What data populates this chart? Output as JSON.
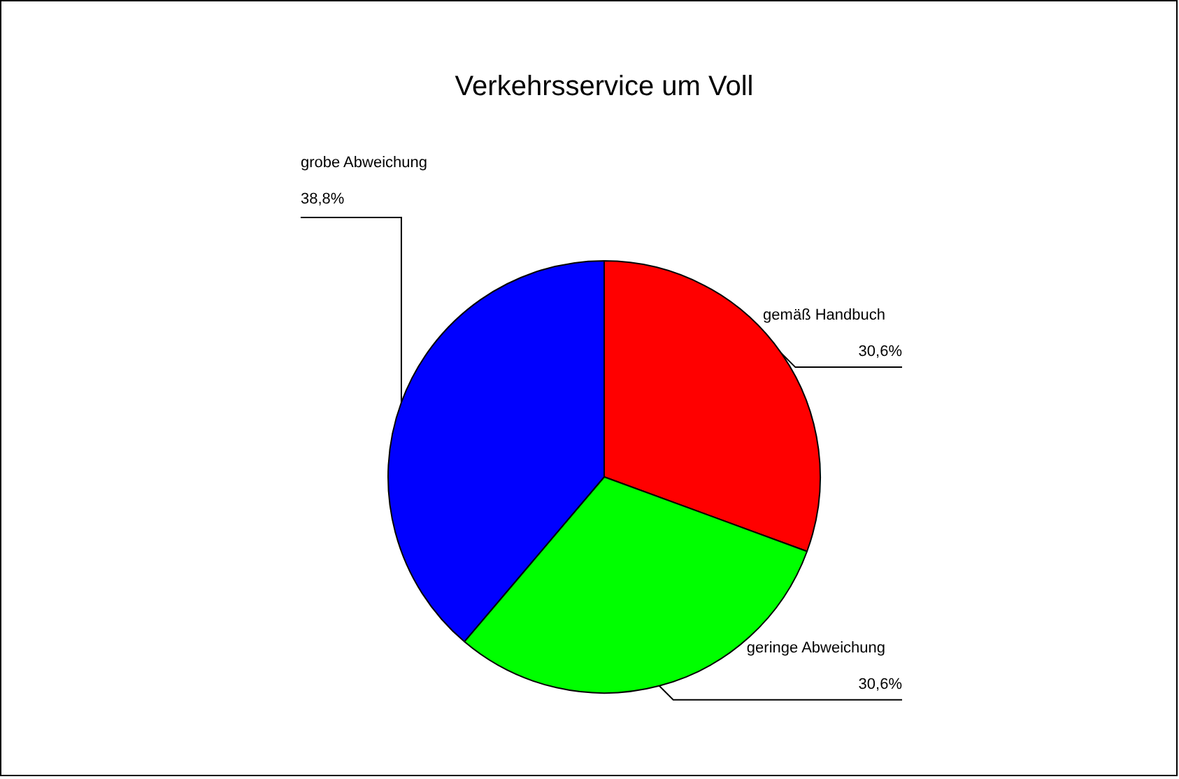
{
  "chart_data": {
    "type": "pie",
    "title": "Verkehrsservice um Voll",
    "categories": [
      "gemäß Handbuch",
      "geringe Abweichung",
      "grobe Abweichung"
    ],
    "values": [
      30.6,
      30.6,
      38.8
    ],
    "colors": [
      "#ff0000",
      "#00ff00",
      "#0000ff"
    ],
    "value_labels": [
      "30,6%",
      "30,6%",
      "38,8%"
    ]
  }
}
